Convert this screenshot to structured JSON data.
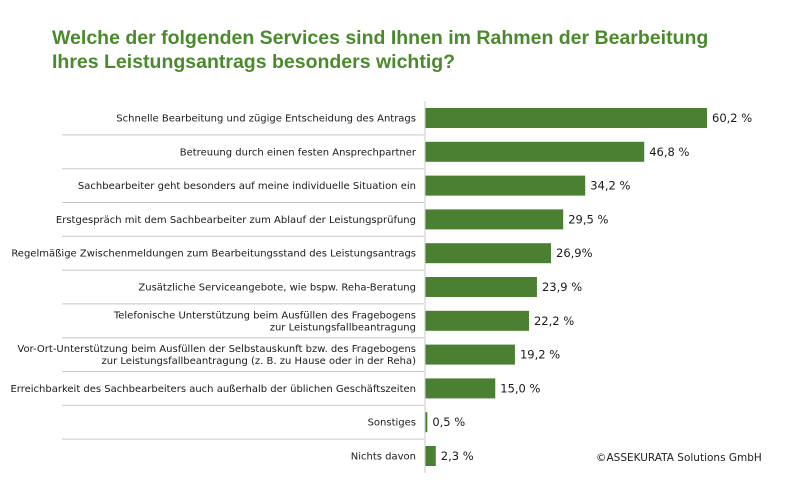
{
  "title": {
    "line1": "Welche der folgenden Services sind Ihnen im Rahmen der Bearbeitung",
    "line2": "Ihres Leistungsantrags besonders wichtig?"
  },
  "copyright": "©ASSEKURATA Solutions GmbH",
  "colors": {
    "title": "#4a8a2c",
    "bar": "#4b7f31",
    "divider": "#c8c8c8",
    "text": "#1a1a1a"
  },
  "chart_data": {
    "type": "bar",
    "orientation": "horizontal",
    "xlim": [
      0,
      60.2
    ],
    "grid": false,
    "categories": [
      [
        "Schnelle Bearbeitung und zügige Entscheidung des Antrags"
      ],
      [
        "Betreuung durch einen festen Ansprechpartner"
      ],
      [
        "Sachbearbeiter geht besonders auf meine individuelle Situation ein"
      ],
      [
        "Erstgespräch mit dem Sachbearbeiter zum Ablauf der Leistungsprüfung"
      ],
      [
        "Regelmäßige Zwischenmeldungen zum Bearbeitungsstand des Leistungsantrags"
      ],
      [
        "Zusätzliche Serviceangebote, wie bspw. Reha-Beratung"
      ],
      [
        "Telefonische Unterstützung beim Ausfüllen des Fragebogens",
        "zur Leistungsfallbeantragung"
      ],
      [
        "Vor-Ort-Unterstützung beim Ausfüllen der Selbstauskunft bzw. des Fragebogens",
        "zur Leistungsfallbeantragung (z. B. zu Hause oder in der Reha)"
      ],
      [
        "Erreichbarkeit des Sachbearbeiters auch außerhalb der üblichen Geschäftszeiten"
      ],
      [
        "Sonstiges"
      ],
      [
        "Nichts davon"
      ]
    ],
    "values": [
      60.2,
      46.8,
      34.2,
      29.5,
      26.9,
      23.9,
      22.2,
      19.2,
      15.0,
      0.5,
      2.3
    ],
    "value_labels": [
      "60,2 %",
      "46,8 %",
      "34,2 %",
      "29,5 %",
      "26,9%",
      "23,9 %",
      "22,2 %",
      "19,2 %",
      "15,0 %",
      "0,5 %",
      "2,3 %"
    ]
  }
}
